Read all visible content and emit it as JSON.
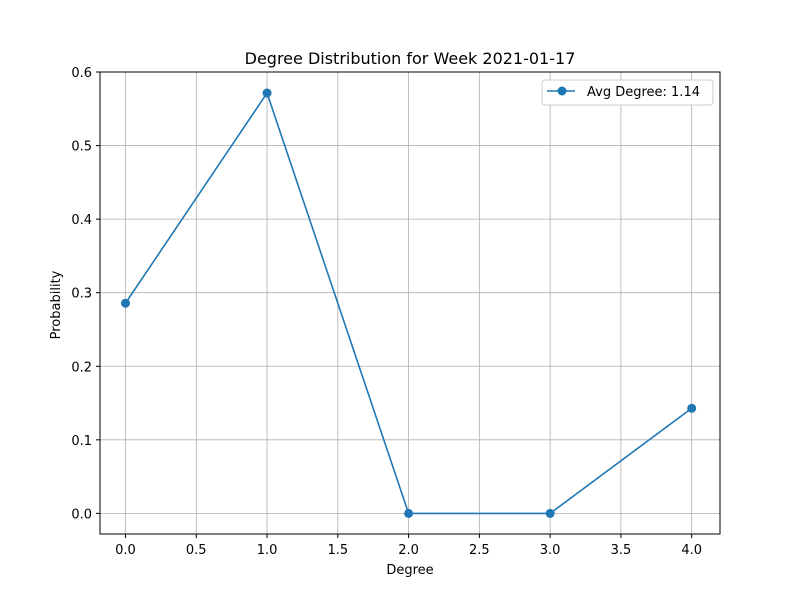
{
  "chart_data": {
    "type": "line",
    "title": "Degree Distribution for Week 2021-01-17",
    "xlabel": "Degree",
    "ylabel": "Probability",
    "xlim": [
      -0.18,
      4.2
    ],
    "ylim": [
      -0.028,
      0.6
    ],
    "xticks": [
      0.0,
      0.5,
      1.0,
      1.5,
      2.0,
      2.5,
      3.0,
      3.5,
      4.0
    ],
    "xtick_labels": [
      "0.0",
      "0.5",
      "1.0",
      "1.5",
      "2.0",
      "2.5",
      "3.0",
      "3.5",
      "4.0"
    ],
    "yticks": [
      0.0,
      0.1,
      0.2,
      0.3,
      0.4,
      0.5,
      0.6
    ],
    "ytick_labels": [
      "0.0",
      "0.1",
      "0.2",
      "0.3",
      "0.4",
      "0.5",
      "0.6"
    ],
    "grid": true,
    "legend_position": "top-right",
    "series": [
      {
        "name": "Avg Degree: 1.14",
        "color": "#1f77b4",
        "marker": "circle",
        "x": [
          0,
          1,
          2,
          3,
          4
        ],
        "y": [
          0.2857,
          0.5714,
          0.0,
          0.0,
          0.1429
        ]
      }
    ]
  }
}
